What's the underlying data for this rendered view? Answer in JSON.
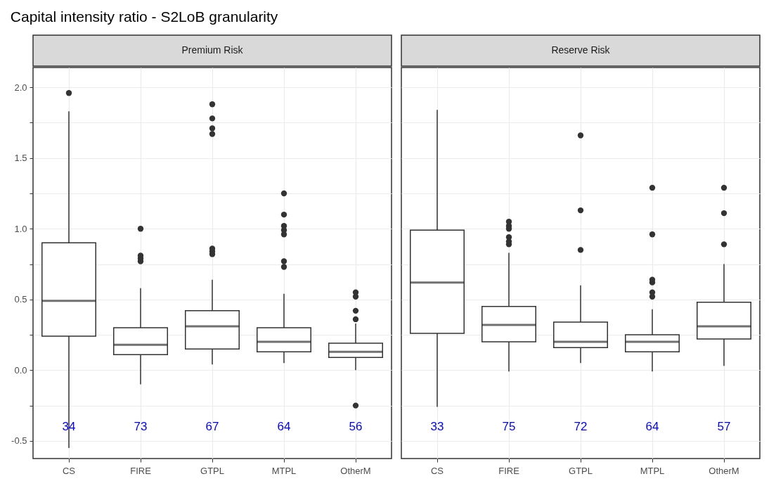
{
  "chart_data": [
    {
      "type": "box",
      "title": "Capital intensity ratio - S2LoB granularity",
      "subtitle": "Premium Risk",
      "categories": [
        "CS",
        "FIRE",
        "GTPL",
        "MTPL",
        "OtherM"
      ],
      "boxes": [
        {
          "low": -0.55,
          "q1": 0.24,
          "median": 0.49,
          "q3": 0.9,
          "high": 1.83,
          "outliers": [
            1.96
          ]
        },
        {
          "low": -0.1,
          "q1": 0.11,
          "median": 0.18,
          "q3": 0.3,
          "high": 0.58,
          "outliers": [
            0.77,
            0.79,
            0.81,
            1.0
          ]
        },
        {
          "low": 0.04,
          "q1": 0.15,
          "median": 0.31,
          "q3": 0.42,
          "high": 0.64,
          "outliers": [
            0.82,
            0.84,
            0.86,
            1.67,
            1.71,
            1.78,
            1.88
          ]
        },
        {
          "low": 0.05,
          "q1": 0.13,
          "median": 0.2,
          "q3": 0.3,
          "high": 0.54,
          "outliers": [
            0.73,
            0.77,
            0.96,
            0.99,
            1.02,
            1.1,
            1.25
          ]
        },
        {
          "low": 0.0,
          "q1": 0.09,
          "median": 0.13,
          "q3": 0.19,
          "high": 0.33,
          "outliers": [
            -0.25,
            0.36,
            0.42,
            0.52,
            0.55
          ]
        }
      ],
      "ylim": [
        -0.625,
        2.14
      ],
      "yticks": [
        {
          "value": -0.5,
          "label": "-0.5"
        },
        {
          "value": -0.25,
          "label": null
        },
        {
          "value": 0,
          "label": "0.0"
        },
        {
          "value": 0.25,
          "label": null
        },
        {
          "value": 0.5,
          "label": "0.5"
        },
        {
          "value": 0.75,
          "label": null
        },
        {
          "value": 1,
          "label": "1.0"
        },
        {
          "value": 1.25,
          "label": null
        },
        {
          "value": 1.5,
          "label": "1.5"
        },
        {
          "value": 1.75,
          "label": null
        },
        {
          "value": 2,
          "label": "2.0"
        }
      ],
      "grid": true,
      "annotations": [
        "34",
        "73",
        "67",
        "64",
        "56"
      ]
    },
    {
      "type": "box",
      "subtitle": "Reserve Risk",
      "categories": [
        "CS",
        "FIRE",
        "GTPL",
        "MTPL",
        "OtherM"
      ],
      "boxes": [
        {
          "low": -0.26,
          "q1": 0.26,
          "median": 0.62,
          "q3": 0.99,
          "high": 1.84
        },
        {
          "low": -0.01,
          "q1": 0.2,
          "median": 0.32,
          "q3": 0.45,
          "high": 0.83,
          "outliers": [
            0.89,
            0.91,
            0.94,
            1.0,
            1.02,
            1.05
          ]
        },
        {
          "low": 0.05,
          "q1": 0.16,
          "median": 0.2,
          "q3": 0.34,
          "high": 0.6,
          "outliers": [
            0.85,
            1.13,
            1.66
          ]
        },
        {
          "low": -0.01,
          "q1": 0.13,
          "median": 0.2,
          "q3": 0.25,
          "high": 0.43,
          "outliers": [
            0.52,
            0.55,
            0.62,
            0.64,
            0.96,
            1.29
          ]
        },
        {
          "low": 0.03,
          "q1": 0.22,
          "median": 0.31,
          "q3": 0.48,
          "high": 0.75,
          "outliers": [
            0.89,
            1.11,
            1.29
          ]
        }
      ],
      "ylim": [
        -0.625,
        2.14
      ],
      "yticks": [
        -0.5,
        -0.25,
        0,
        0.25,
        0.5,
        0.75,
        1,
        1.25,
        1.5,
        1.75,
        2
      ],
      "grid": true,
      "tick_labels": "x",
      "annotations": [
        "33",
        "75",
        "72",
        "64",
        "57"
      ]
    }
  ]
}
